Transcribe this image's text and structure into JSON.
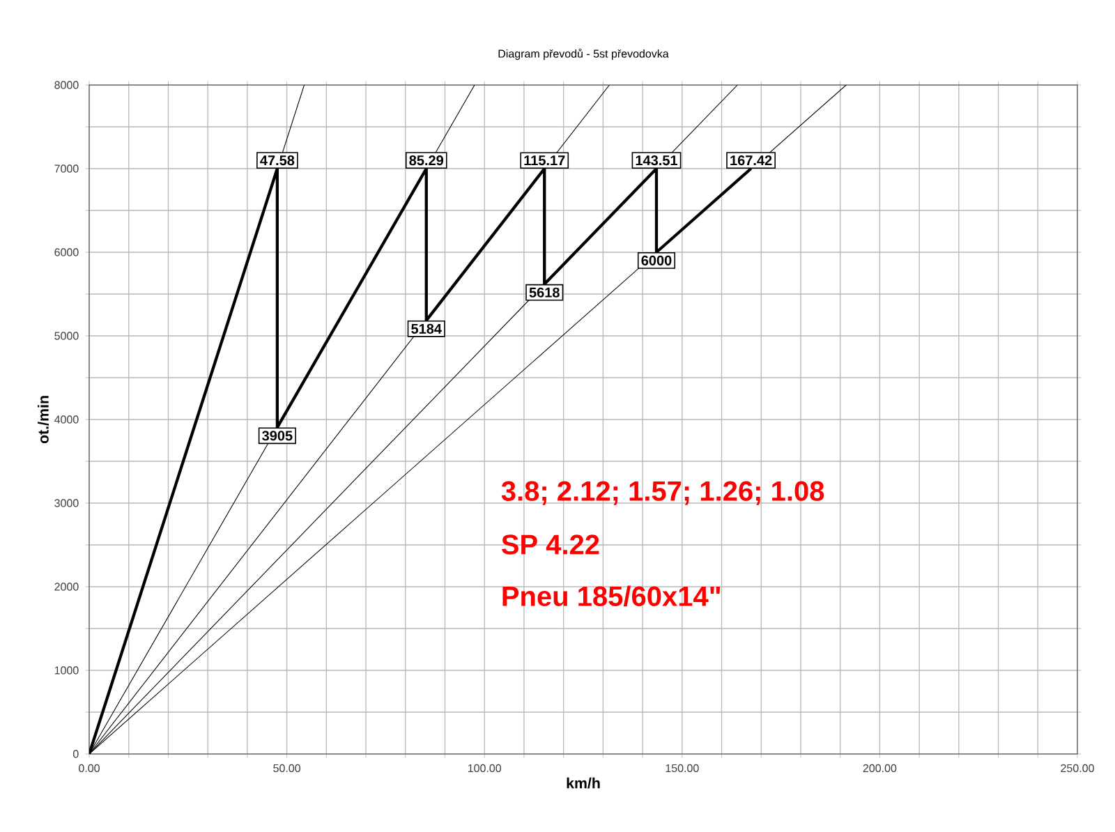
{
  "chart_data": {
    "type": "line",
    "title": "Diagram převodů - 5st převodovka",
    "xlabel": "km/h",
    "ylabel": "ot./min",
    "xlim": [
      0,
      250
    ],
    "ylim": [
      0,
      8000
    ],
    "xticks": [
      {
        "value": 0,
        "label": "0.00"
      },
      {
        "value": 10,
        "label": null
      },
      {
        "value": 20,
        "label": null
      },
      {
        "value": 30,
        "label": null
      },
      {
        "value": 40,
        "label": null
      },
      {
        "value": 50,
        "label": "50.00"
      },
      {
        "value": 60,
        "label": null
      },
      {
        "value": 70,
        "label": null
      },
      {
        "value": 80,
        "label": null
      },
      {
        "value": 90,
        "label": null
      },
      {
        "value": 100,
        "label": "100.00"
      },
      {
        "value": 110,
        "label": null
      },
      {
        "value": 120,
        "label": null
      },
      {
        "value": 130,
        "label": null
      },
      {
        "value": 140,
        "label": null
      },
      {
        "value": 150,
        "label": "150.00"
      },
      {
        "value": 160,
        "label": null
      },
      {
        "value": 170,
        "label": null
      },
      {
        "value": 180,
        "label": null
      },
      {
        "value": 190,
        "label": null
      },
      {
        "value": 200,
        "label": "200.00"
      },
      {
        "value": 210,
        "label": null
      },
      {
        "value": 220,
        "label": null
      },
      {
        "value": 230,
        "label": null
      },
      {
        "value": 240,
        "label": null
      },
      {
        "value": 250,
        "label": "250.00"
      }
    ],
    "yticks": [
      0,
      {
        "value": 500,
        "label": null
      },
      1000,
      {
        "value": 1500,
        "label": null
      },
      2000,
      {
        "value": 2500,
        "label": null
      },
      3000,
      {
        "value": 3500,
        "label": null
      },
      4000,
      {
        "value": 4500,
        "label": null
      },
      5000,
      {
        "value": 5500,
        "label": null
      },
      6000,
      {
        "value": 6500,
        "label": null
      },
      7000,
      {
        "value": 7500,
        "label": null
      },
      8000
    ],
    "grid": true,
    "marker": "none",
    "line_style": "solid",
    "series": [
      {
        "color": "#000000",
        "x": [
          0,
          47.58,
          47.58,
          85.29,
          85.29,
          115.17,
          115.17,
          143.51,
          143.51,
          167.42
        ],
        "values": [
          0,
          7000,
          3905,
          7000,
          5184,
          7000,
          5618,
          7000,
          6000,
          7000
        ]
      },
      {
        "color": "#000000",
        "x": [
          0,
          54.4
        ],
        "values": [
          0,
          8000
        ]
      },
      {
        "color": "#000000",
        "x": [
          0,
          97.5
        ],
        "values": [
          0,
          8000
        ]
      },
      {
        "color": "#000000",
        "x": [
          0,
          131.6
        ],
        "values": [
          0,
          8000
        ]
      },
      {
        "color": "#000000",
        "x": [
          0,
          164.0
        ],
        "values": [
          0,
          8000
        ]
      },
      {
        "color": "#000000",
        "x": [
          0,
          191.5
        ],
        "values": [
          0,
          8000
        ]
      }
    ],
    "annotations": [
      {
        "text": "47.58",
        "x": 47.58,
        "y": 7000
      },
      {
        "text": "85.29",
        "x": 85.29,
        "y": 7000
      },
      {
        "text": "115.17",
        "x": 115.17,
        "y": 7000
      },
      {
        "text": "143.51",
        "x": 143.51,
        "y": 7000
      },
      {
        "text": "167.42",
        "x": 167.42,
        "y": 7000
      },
      {
        "text": "3905",
        "x": 47.58,
        "y": 3905
      },
      {
        "text": "5184",
        "x": 85.29,
        "y": 5184
      },
      {
        "text": "5618",
        "x": 115.17,
        "y": 5618
      },
      {
        "text": "6000",
        "x": 143.51,
        "y": 6000
      },
      "3.8; 2.12; 1.57; 1.26; 1.08",
      "SP 4.22",
      "Pneu 185/60x14\""
    ]
  }
}
